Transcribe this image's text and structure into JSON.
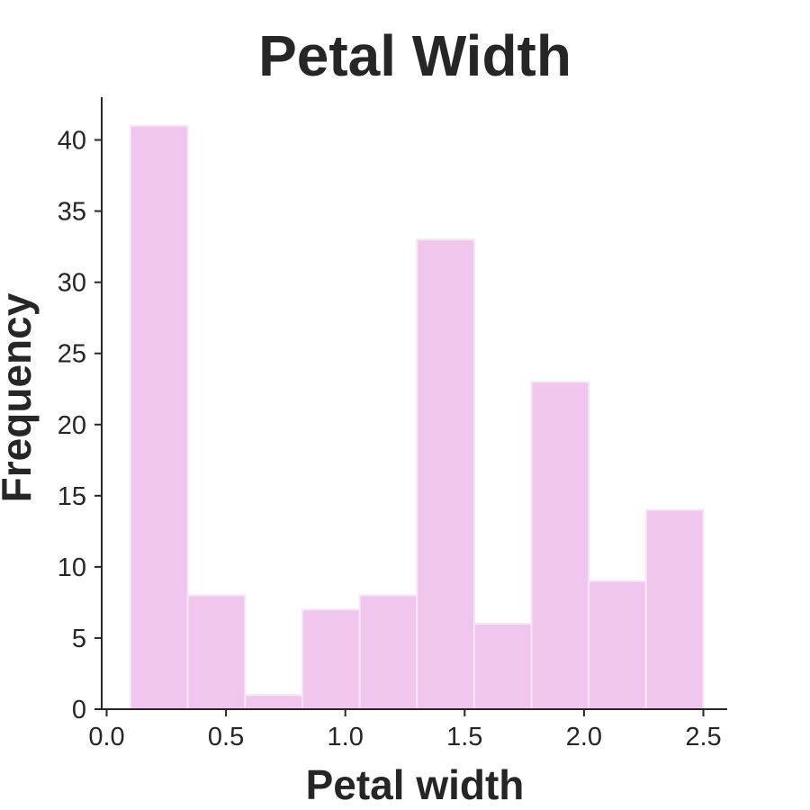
{
  "chart_data": {
    "type": "bar",
    "title": "Petal Width",
    "xlabel": "Petal width",
    "ylabel": "Frequency",
    "bar_color": "#f0c6ee",
    "xlim": [
      0.0,
      2.6
    ],
    "ylim": [
      0,
      43
    ],
    "x_ticks": [
      "0.0",
      "0.5",
      "1.0",
      "1.5",
      "2.0",
      "2.5"
    ],
    "y_ticks": [
      "0",
      "5",
      "10",
      "15",
      "20",
      "25",
      "30",
      "35",
      "40"
    ],
    "bin_edges": [
      0.1,
      0.34,
      0.58,
      0.82,
      1.06,
      1.3,
      1.54,
      1.78,
      2.02,
      2.26,
      2.5
    ],
    "values": [
      41,
      8,
      1,
      7,
      8,
      33,
      6,
      23,
      9,
      14
    ],
    "grid": false,
    "legend": "none"
  }
}
